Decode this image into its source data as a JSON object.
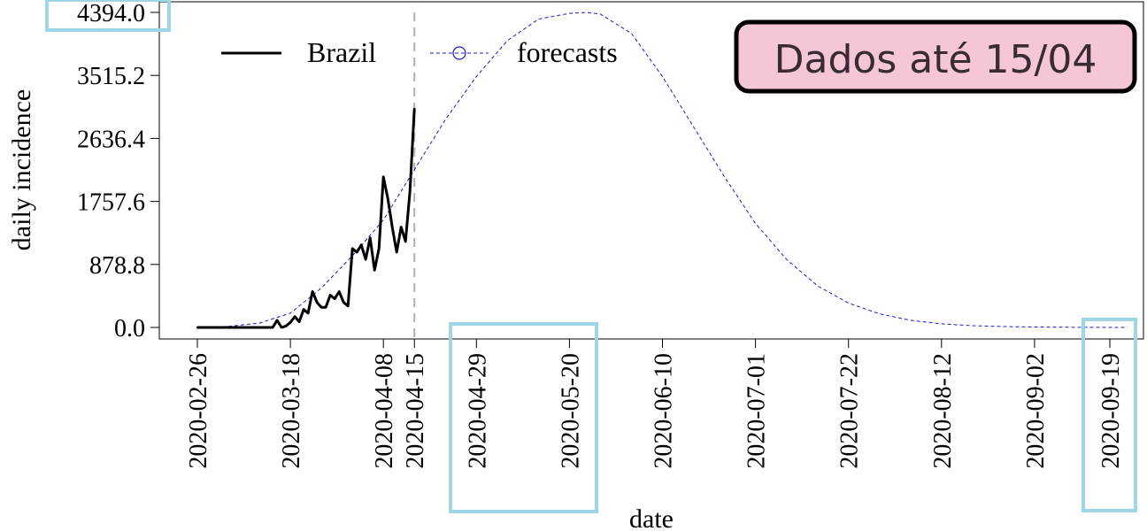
{
  "chart_data": {
    "type": "line",
    "xlabel": "date",
    "ylabel": "daily incidence",
    "ylim": [
      0,
      4394.0
    ],
    "y_ticks": [
      "0.0",
      "878.8",
      "1757.6",
      "2636.4",
      "3515.2",
      "4394.0"
    ],
    "x_range": [
      "2020-02-26",
      "2020-09-23"
    ],
    "x_ticks": [
      "2020-02-26",
      "2020-03-18",
      "2020-04-08",
      "2020-04-15",
      "2020-04-29",
      "2020-05-20",
      "2020-06-10",
      "2020-07-01",
      "2020-07-22",
      "2020-08-12",
      "2020-09-02",
      "2020-09-19"
    ],
    "cutoff_date": "2020-04-15",
    "grid": false,
    "legend": {
      "placement": "top-left",
      "entries": [
        "Brazil",
        "forecasts"
      ]
    },
    "series": [
      {
        "name": "Brazil",
        "color": "#000000",
        "style": "solid",
        "x": [
          "2020-02-26",
          "2020-02-27",
          "2020-02-28",
          "2020-02-29",
          "2020-03-01",
          "2020-03-02",
          "2020-03-03",
          "2020-03-04",
          "2020-03-05",
          "2020-03-06",
          "2020-03-07",
          "2020-03-08",
          "2020-03-09",
          "2020-03-10",
          "2020-03-11",
          "2020-03-12",
          "2020-03-13",
          "2020-03-14",
          "2020-03-15",
          "2020-03-16",
          "2020-03-17",
          "2020-03-18",
          "2020-03-19",
          "2020-03-20",
          "2020-03-21",
          "2020-03-22",
          "2020-03-23",
          "2020-03-24",
          "2020-03-25",
          "2020-03-26",
          "2020-03-27",
          "2020-03-28",
          "2020-03-29",
          "2020-03-30",
          "2020-03-31",
          "2020-04-01",
          "2020-04-02",
          "2020-04-03",
          "2020-04-04",
          "2020-04-05",
          "2020-04-06",
          "2020-04-07",
          "2020-04-08",
          "2020-04-09",
          "2020-04-10",
          "2020-04-11",
          "2020-04-12",
          "2020-04-13",
          "2020-04-14",
          "2020-04-15"
        ],
        "values": [
          0,
          0,
          0,
          0,
          0,
          0,
          0,
          0,
          0,
          0,
          0,
          0,
          0,
          0,
          0,
          0,
          0,
          0,
          100,
          0,
          20,
          70,
          150,
          80,
          250,
          200,
          500,
          350,
          280,
          280,
          450,
          400,
          500,
          350,
          300,
          1100,
          1050,
          1150,
          950,
          1250,
          800,
          1100,
          2100,
          1800,
          1400,
          1050,
          1400,
          1200,
          1900,
          3050
        ]
      },
      {
        "name": "forecasts",
        "color": "#1a1acc",
        "style": "dashed",
        "marker": "open-circle",
        "peak_date": "2020-05-24",
        "peak_value": 4394.0,
        "x": [
          "2020-02-26",
          "2020-03-04",
          "2020-03-11",
          "2020-03-18",
          "2020-03-25",
          "2020-04-01",
          "2020-04-08",
          "2020-04-15",
          "2020-04-22",
          "2020-04-29",
          "2020-05-06",
          "2020-05-13",
          "2020-05-20",
          "2020-05-24",
          "2020-05-27",
          "2020-06-03",
          "2020-06-10",
          "2020-06-17",
          "2020-06-24",
          "2020-07-01",
          "2020-07-08",
          "2020-07-15",
          "2020-07-22",
          "2020-07-29",
          "2020-08-05",
          "2020-08-12",
          "2020-08-19",
          "2020-08-26",
          "2020-09-02",
          "2020-09-09",
          "2020-09-16",
          "2020-09-23"
        ],
        "values": [
          5,
          15,
          60,
          200,
          550,
          1000,
          1500,
          2200,
          2900,
          3500,
          4000,
          4300,
          4380,
          4394,
          4370,
          4100,
          3500,
          2800,
          2100,
          1450,
          950,
          580,
          340,
          190,
          100,
          50,
          25,
          12,
          6,
          3,
          1,
          0
        ]
      }
    ]
  },
  "annotation": {
    "badge_text": "Dados até 15/04",
    "badge_fill": "#f4c6d6",
    "highlight_color": "#9dd6e6"
  }
}
